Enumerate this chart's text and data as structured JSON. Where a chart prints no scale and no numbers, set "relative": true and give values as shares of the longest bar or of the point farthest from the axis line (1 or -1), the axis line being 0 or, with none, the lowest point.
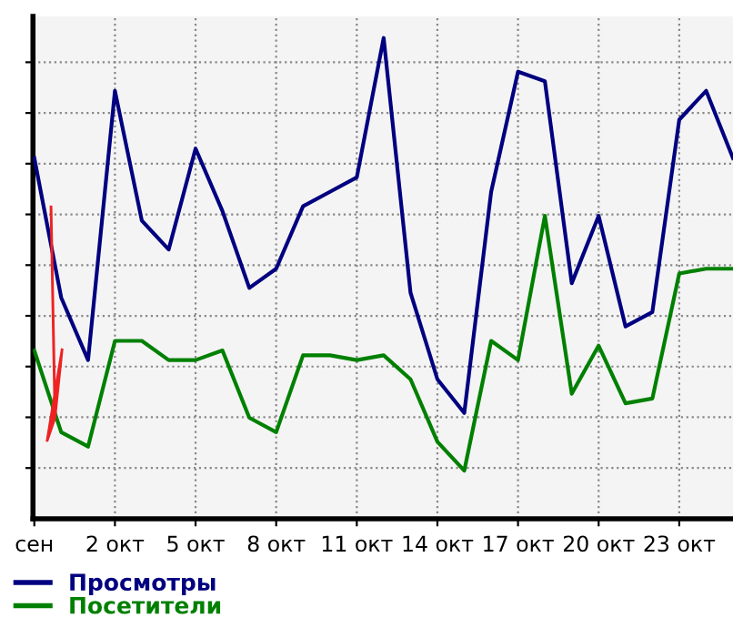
{
  "chart_data": {
    "type": "line",
    "relative": true,
    "grid": true,
    "legend": "bottom left",
    "categories": [
      "сен",
      null,
      null,
      "2 окт",
      null,
      null,
      "5 окт",
      null,
      null,
      "8 окт",
      null,
      null,
      "11 окт",
      null,
      null,
      "14 окт",
      null,
      null,
      "17 окт",
      null,
      null,
      "20 окт",
      null,
      null,
      "23 окт",
      null,
      null
    ],
    "series": [
      {
        "name": "Просмотры",
        "color": "#000080",
        "values": [
          0.75,
          0.46,
          0.33,
          0.89,
          0.62,
          0.56,
          0.77,
          0.64,
          0.48,
          0.52,
          0.65,
          0.68,
          0.71,
          1,
          0.47,
          0.29,
          0.22,
          0.68,
          0.93,
          0.91,
          0.49,
          0.63,
          0.4,
          0.43,
          0.83,
          0.89,
          0.75
        ]
      },
      {
        "name": "Посетители",
        "color": "#008000",
        "values": [
          0.35,
          0.18,
          0.15,
          0.37,
          0.37,
          0.33,
          0.33,
          0.35,
          0.21,
          0.18,
          0.34,
          0.34,
          0.33,
          0.34,
          0.29,
          0.16,
          0.1,
          0.37,
          0.33,
          0.63,
          0.26,
          0.36,
          0.24,
          0.25,
          0.51,
          0.52,
          0.52
        ]
      }
    ]
  }
}
